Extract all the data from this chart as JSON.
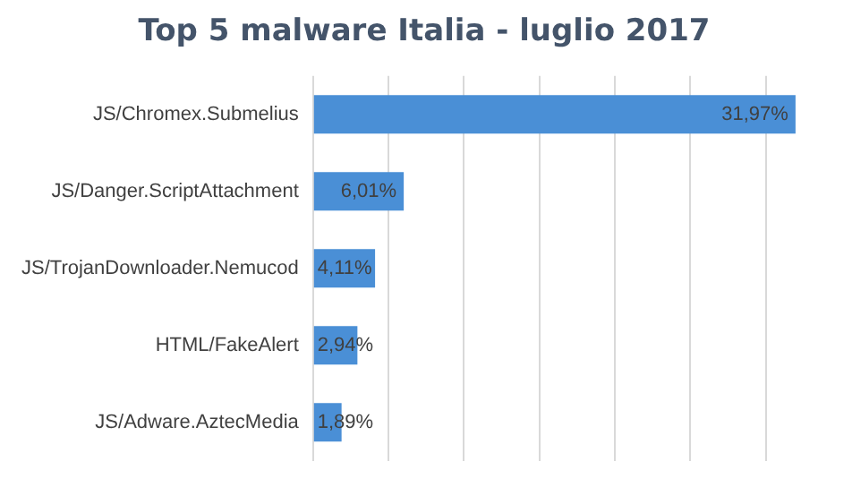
{
  "chart_data": {
    "type": "bar",
    "orientation": "horizontal",
    "title": "Top 5 malware Italia - luglio 2017",
    "categories": [
      "JS/Chromex.Submelius",
      "JS/Danger.ScriptAttachment",
      "JS/TrojanDownloader.Nemucod",
      "HTML/FakeAlert",
      "JS/Adware.AztecMedia"
    ],
    "values": [
      31.97,
      6.01,
      4.11,
      2.94,
      1.89
    ],
    "value_labels": [
      "31,97%",
      "6,01%",
      "4,11%",
      "2,94%",
      "1,89%"
    ],
    "color": "#4a8fd6",
    "xticks": [
      {
        "value": 0,
        "label": null
      },
      {
        "value": 5,
        "label": null
      },
      {
        "value": 10,
        "label": null
      },
      {
        "value": 15,
        "label": null
      },
      {
        "value": 20,
        "label": null
      },
      {
        "value": 25,
        "label": null
      },
      {
        "value": 30,
        "label": null
      }
    ],
    "grid": "x",
    "tick_labels": "y",
    "legend": false
  }
}
